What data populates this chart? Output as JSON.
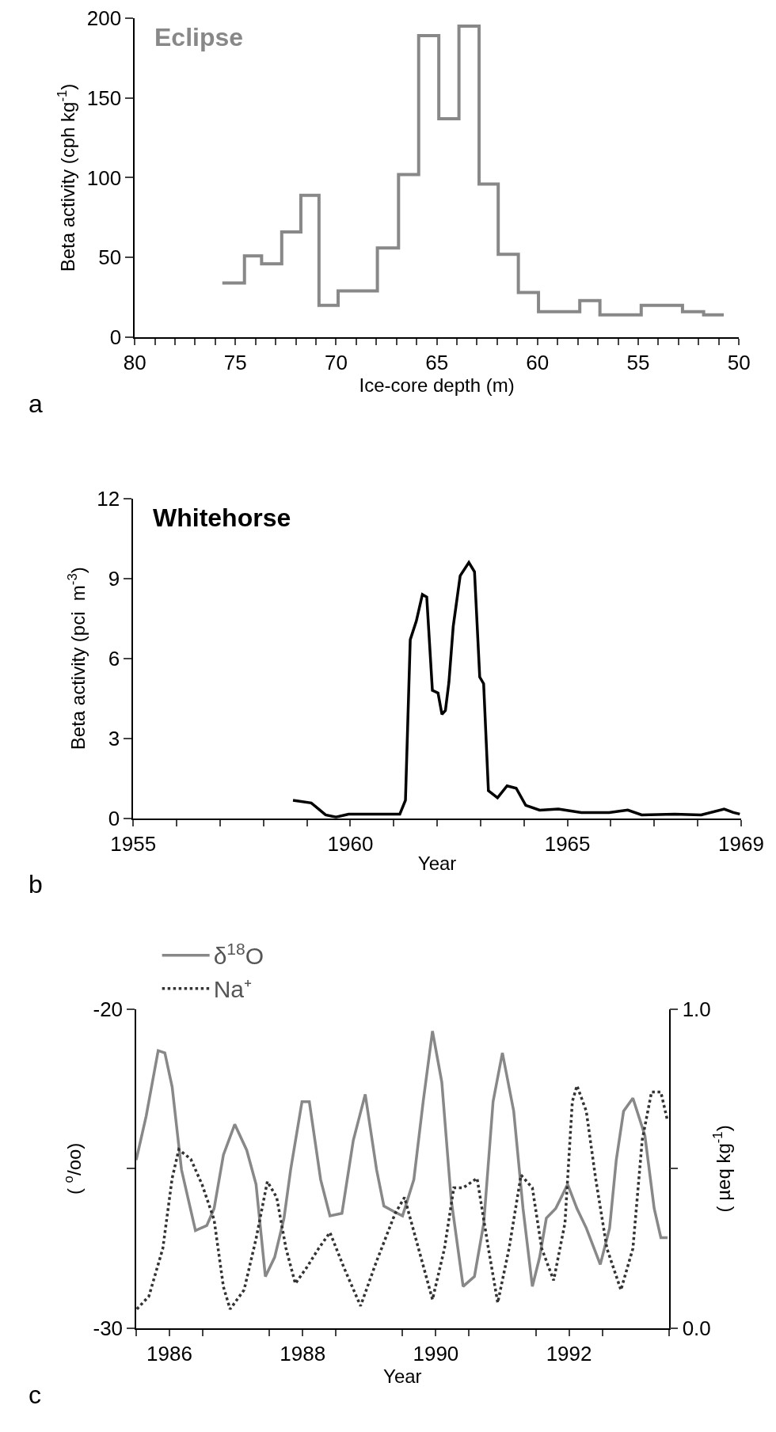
{
  "chart_data": [
    {
      "type": "step",
      "title": "Eclipse",
      "xlabel": "Ice-core depth (m)",
      "ylabel": "Beta activity (cph kg$^{-1}$)",
      "annotations": [
        "a"
      ],
      "x": [
        75.65,
        74.55,
        73.7,
        72.7,
        71.75,
        70.85,
        69.9,
        67.95,
        66.9,
        65.9,
        64.9,
        63.9,
        62.9,
        61.95,
        60.95,
        59.95,
        57.9,
        56.9,
        54.85,
        52.8,
        51.75,
        50.75
      ],
      "values": [
        34,
        51,
        46,
        66,
        89,
        20,
        29,
        56,
        102,
        189,
        137,
        195,
        96,
        52,
        28,
        16,
        23,
        14,
        20,
        16,
        14,
        14
      ],
      "color": "#888888",
      "xlim": [
        80,
        50
      ],
      "xticks": [
        80,
        {
          "value": 79,
          "label": null
        },
        {
          "value": 78,
          "label": null
        },
        {
          "value": 77,
          "label": null
        },
        {
          "value": 76,
          "label": null
        },
        75,
        {
          "value": 74,
          "label": null
        },
        {
          "value": 73,
          "label": null
        },
        {
          "value": 72,
          "label": null
        },
        {
          "value": 71,
          "label": null
        },
        70,
        {
          "value": 69,
          "label": null
        },
        {
          "value": 68,
          "label": null
        },
        {
          "value": 67,
          "label": null
        },
        {
          "value": 66,
          "label": null
        },
        65,
        {
          "value": 64,
          "label": null
        },
        {
          "value": 63,
          "label": null
        },
        {
          "value": 62,
          "label": null
        },
        {
          "value": 61,
          "label": null
        },
        60,
        {
          "value": 59,
          "label": null
        },
        {
          "value": 58,
          "label": null
        },
        {
          "value": 57,
          "label": null
        },
        {
          "value": 56,
          "label": null
        },
        55,
        {
          "value": 54,
          "label": null
        },
        {
          "value": 53,
          "label": null
        },
        {
          "value": 52,
          "label": null
        },
        {
          "value": 51,
          "label": null
        },
        50
      ],
      "ylim": [
        0,
        200
      ],
      "yticks": [
        0,
        50,
        100,
        150,
        200
      ]
    },
    {
      "type": "line",
      "title": "Whitehorse",
      "xlabel": "Year",
      "ylabel": "Beta activity (pci  m$^{-3}$)",
      "annotations": [
        "b"
      ],
      "x": [
        1958.68,
        1959.1,
        1959.43,
        1959.67,
        1959.96,
        1960.61,
        1961.14,
        1961.27,
        1961.38,
        1961.52,
        1961.66,
        1961.76,
        1961.89,
        1962.02,
        1962.11,
        1962.19,
        1962.27,
        1962.37,
        1962.53,
        1962.73,
        1962.86,
        1962.98,
        1963.07,
        1963.18,
        1963.39,
        1963.61,
        1963.82,
        1964.04,
        1964.36,
        1964.79,
        1965.32,
        1965.96,
        1966.39,
        1966.71,
        1967.47,
        1968.08,
        1968.61,
        1968.82,
        1968.97
      ],
      "values": [
        0.68,
        0.58,
        0.13,
        0.05,
        0.16,
        0.16,
        0.16,
        0.68,
        6.7,
        7.4,
        8.4,
        8.3,
        4.8,
        4.7,
        3.9,
        4.05,
        5.1,
        7.2,
        9.1,
        9.6,
        9.25,
        5.3,
        5.05,
        1.04,
        0.77,
        1.22,
        1.13,
        0.49,
        0.31,
        0.35,
        0.22,
        0.22,
        0.31,
        0.13,
        0.16,
        0.13,
        0.35,
        0.22,
        0.16
      ],
      "color": "#000000",
      "xlim": [
        1955,
        1969
      ],
      "xticks": [
        1955,
        {
          "value": 1956,
          "label": null
        },
        {
          "value": 1957,
          "label": null
        },
        {
          "value": 1958,
          "label": null
        },
        {
          "value": 1959,
          "label": null
        },
        1960,
        {
          "value": 1961,
          "label": null
        },
        {
          "value": 1962,
          "label": null
        },
        {
          "value": 1963,
          "label": null
        },
        {
          "value": 1964,
          "label": null
        },
        1965,
        {
          "value": 1966,
          "label": null
        },
        {
          "value": 1967,
          "label": null
        },
        {
          "value": 1968,
          "label": null
        },
        1969
      ],
      "ylim": [
        0,
        12
      ],
      "yticks": [
        0,
        3,
        6,
        9,
        12
      ]
    },
    {
      "type": "line",
      "xlabel": "Year",
      "ylabel": "( $^{o}$/oo)",
      "y2label": "( µeq kg$^{-1}$)",
      "annotations": [
        "c"
      ],
      "legend": "top",
      "series": [
        {
          "name": "δ$^{18}$O",
          "color": "#888888",
          "line_style": "solid",
          "x": [
            1986.0,
            1986.15,
            1986.33,
            1986.43,
            1986.54,
            1986.68,
            1986.89,
            1987.06,
            1987.17,
            1987.31,
            1987.48,
            1987.66,
            1987.8,
            1987.94,
            1988.08,
            1988.22,
            1988.32,
            1988.49,
            1988.6,
            1988.77,
            1988.91,
            1989.09,
            1989.26,
            1989.44,
            1989.61,
            1989.72,
            1989.86,
            1990.0,
            1990.17,
            1990.31,
            1990.45,
            1990.59,
            1990.73,
            1990.91,
            1991.08,
            1991.22,
            1991.36,
            1991.5,
            1991.67,
            1991.81,
            1991.95,
            1992.06,
            1992.16,
            1992.3,
            1992.48,
            1992.62,
            1992.76,
            1992.97,
            1993.11,
            1993.21,
            1993.32,
            1993.46,
            1993.64,
            1993.78,
            1993.88,
            1993.98
          ],
          "values": [
            -24.73,
            -23.35,
            -21.3,
            -21.37,
            -22.44,
            -25.03,
            -26.94,
            -26.78,
            -26.25,
            -24.57,
            -23.61,
            -24.42,
            -25.49,
            -28.38,
            -27.77,
            -26.55,
            -25.03,
            -22.9,
            -22.9,
            -25.34,
            -26.48,
            -26.4,
            -24.12,
            -22.67,
            -25.03,
            -26.17,
            -26.33,
            -26.48,
            -25.34,
            -22.9,
            -20.69,
            -22.29,
            -25.95,
            -28.69,
            -28.38,
            -26.71,
            -22.9,
            -21.37,
            -23.2,
            -26.25,
            -28.69,
            -27.77,
            -26.55,
            -26.25,
            -25.49,
            -26.25,
            -26.86,
            -28.0,
            -26.86,
            -24.73,
            -23.2,
            -22.79,
            -23.96,
            -26.25,
            -27.16,
            -27.16
          ]
        },
        {
          "name": "Na⁺",
          "color": "#333333",
          "line_style": "dotted",
          "axis": "y2",
          "x": [
            1986.01,
            1986.19,
            1986.4,
            1986.54,
            1986.64,
            1986.82,
            1986.99,
            1987.17,
            1987.31,
            1987.41,
            1987.62,
            1987.8,
            1987.97,
            1988.11,
            1988.25,
            1988.39,
            1988.56,
            1988.74,
            1988.91,
            1989.12,
            1989.37,
            1989.61,
            1989.89,
            1990.03,
            1990.24,
            1990.45,
            1990.63,
            1990.77,
            1990.91,
            1991.12,
            1991.29,
            1991.43,
            1991.6,
            1991.78,
            1991.95,
            1992.09,
            1992.27,
            1992.44,
            1992.55,
            1992.62,
            1992.76,
            1992.9,
            1993.07,
            1993.28,
            1993.46,
            1993.6,
            1993.74,
            1993.88,
            1993.98
          ],
          "values": [
            0.06,
            0.1,
            0.25,
            0.47,
            0.56,
            0.53,
            0.45,
            0.34,
            0.13,
            0.06,
            0.12,
            0.28,
            0.46,
            0.41,
            0.25,
            0.14,
            0.19,
            0.25,
            0.3,
            0.19,
            0.07,
            0.21,
            0.36,
            0.41,
            0.25,
            0.09,
            0.25,
            0.44,
            0.44,
            0.47,
            0.25,
            0.08,
            0.25,
            0.48,
            0.44,
            0.25,
            0.15,
            0.33,
            0.71,
            0.76,
            0.68,
            0.47,
            0.25,
            0.12,
            0.25,
            0.59,
            0.74,
            0.74,
            0.65
          ]
        }
      ],
      "xlim": [
        1986,
        1994
      ],
      "xticks": [
        {
          "value": 1986,
          "label": null
        },
        {
          "value": 1986.5,
          "label": "1986"
        },
        {
          "value": 1987,
          "label": null
        },
        {
          "value": 1988,
          "label": null
        },
        {
          "value": 1988.5,
          "label": "1988"
        },
        {
          "value": 1989,
          "label": null
        },
        {
          "value": 1990,
          "label": null
        },
        {
          "value": 1990.5,
          "label": "1990"
        },
        {
          "value": 1991,
          "label": null
        },
        {
          "value": 1992,
          "label": null
        },
        {
          "value": 1992.5,
          "label": "1992"
        },
        {
          "value": 1993,
          "label": null
        },
        {
          "value": 1994,
          "label": null
        }
      ],
      "ylim": [
        -30,
        -20
      ],
      "yticks": [
        -30,
        {
          "value": -25,
          "label": null
        },
        -20
      ],
      "y2lim": [
        0,
        1
      ],
      "y2ticks": [
        {
          "value": 0,
          "label": "0.0"
        },
        {
          "value": 0.5,
          "label": null
        },
        {
          "value": 1,
          "label": "1.0"
        }
      ]
    }
  ]
}
